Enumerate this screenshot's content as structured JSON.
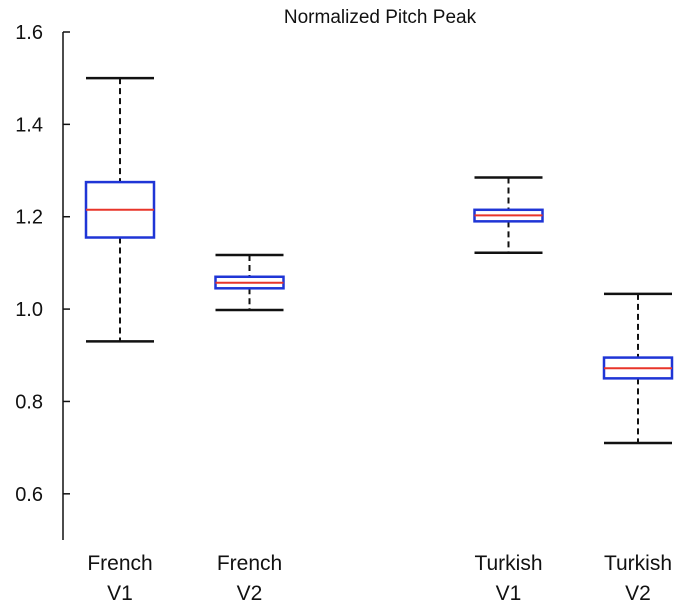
{
  "chart_data": {
    "type": "box",
    "title": "Normalized Pitch Peak",
    "xlabel": "",
    "ylabel": "",
    "ylim": [
      0.5,
      1.6
    ],
    "yticks": [
      0.6,
      0.8,
      1.0,
      1.2,
      1.4,
      1.6
    ],
    "ytick_labels": [
      "0.6",
      "0.8",
      "1.0",
      "1.2",
      "1.4",
      "1.6"
    ],
    "grid": false,
    "box_color": "#1f35d6",
    "median_color": "#e8352a",
    "whisker_color": "#111111",
    "categories": [
      {
        "line1": "French",
        "line2": "V1",
        "slot": 1
      },
      {
        "line1": "French",
        "line2": "V2",
        "slot": 2
      },
      {
        "line1": "Turkish",
        "line2": "V1",
        "slot": 4
      },
      {
        "line1": "Turkish",
        "line2": "V2",
        "slot": 5
      }
    ],
    "boxes": [
      {
        "min": 0.93,
        "q1": 1.155,
        "median": 1.215,
        "q3": 1.275,
        "max": 1.5
      },
      {
        "min": 0.998,
        "q1": 1.045,
        "median": 1.057,
        "q3": 1.07,
        "max": 1.117
      },
      {
        "min": 1.122,
        "q1": 1.19,
        "median": 1.203,
        "q3": 1.215,
        "max": 1.285
      },
      {
        "min": 0.71,
        "q1": 0.85,
        "median": 0.872,
        "q3": 0.895,
        "max": 1.033
      }
    ]
  }
}
